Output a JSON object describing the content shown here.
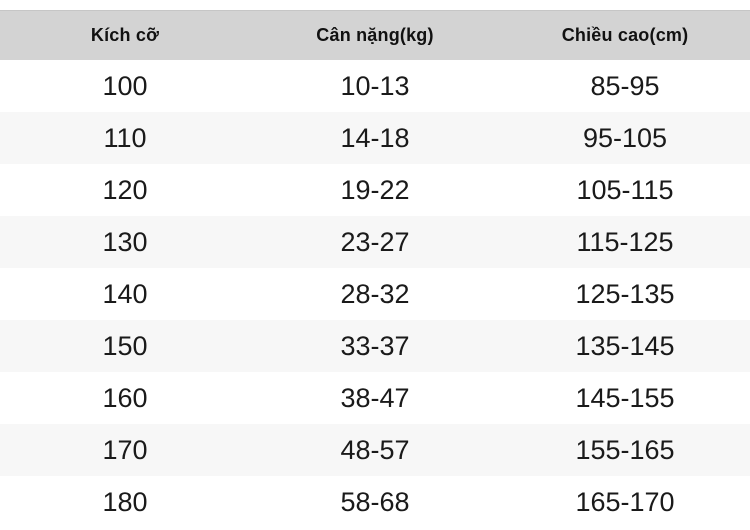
{
  "chart_data": {
    "type": "table",
    "columns": [
      "Kích cỡ",
      "Cân nặng(kg)",
      "Chiều cao(cm)"
    ],
    "rows": [
      [
        "100",
        "10-13",
        "85-95"
      ],
      [
        "110",
        "14-18",
        "95-105"
      ],
      [
        "120",
        "19-22",
        "105-115"
      ],
      [
        "130",
        "23-27",
        "115-125"
      ],
      [
        "140",
        "28-32",
        "125-135"
      ],
      [
        "150",
        "33-37",
        "135-145"
      ],
      [
        "160",
        "38-47",
        "145-155"
      ],
      [
        "170",
        "48-57",
        "155-165"
      ],
      [
        "180",
        "58-68",
        "165-170"
      ]
    ],
    "layout": {
      "header_position": "top",
      "alternating_rows": true,
      "text_align": "center"
    }
  },
  "colors": {
    "header_bg": "#d3d3d3",
    "row_alt_bg": "#f7f7f7",
    "header_text": "#111111",
    "cell_text": "#1a1a1a"
  }
}
